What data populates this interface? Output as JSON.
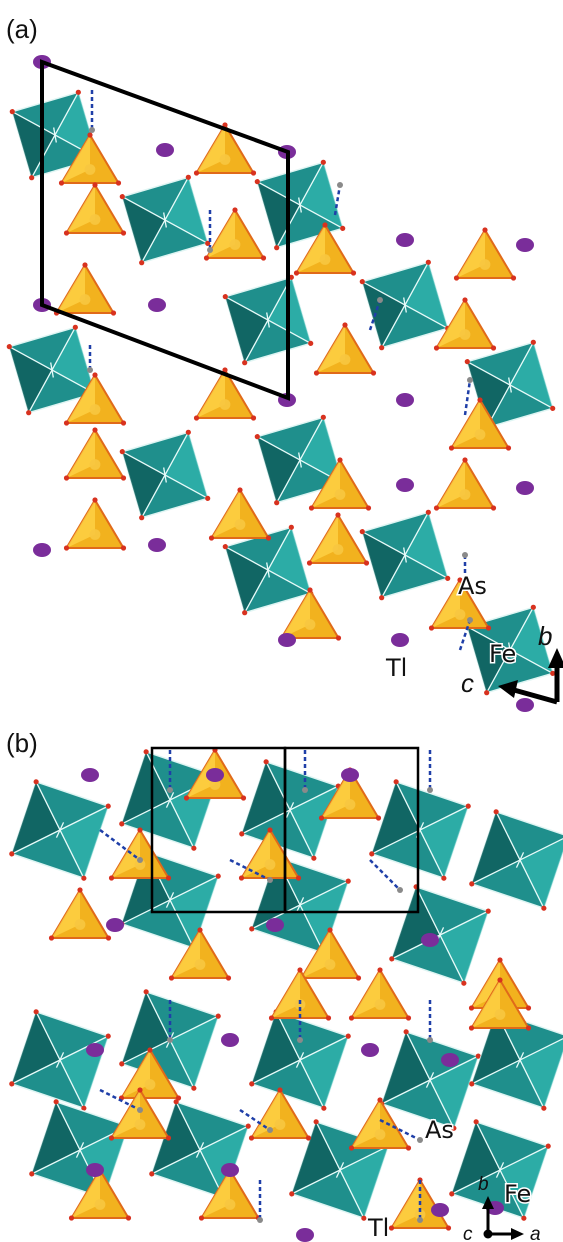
{
  "figure": {
    "panel_a": {
      "label": "(a)",
      "atom_labels": {
        "as": "As",
        "fe": "Fe",
        "tl": "Tl"
      },
      "axes": {
        "b": "b",
        "c": "c"
      }
    },
    "panel_b": {
      "label": "(b)",
      "atom_labels": {
        "as": "As",
        "fe": "Fe",
        "tl": "Tl"
      },
      "axes": {
        "b": "b",
        "c": "c",
        "a": "a"
      }
    }
  },
  "colors": {
    "fe_octahedron": "#1f8f8c",
    "fe_dark": "#0f5f5d",
    "fe_light": "#2fb3ad",
    "as_tetrahedron": "#f2b21e",
    "as_light": "#ffd44a",
    "as_edge": "#e06a1a",
    "oxygen": "#d8321f",
    "tl_atom": "#7a2d9a",
    "hydrogen": "#8a8a8a",
    "hbond": "#1f3fa8",
    "cell_outline": "#000000"
  },
  "icons": [
    "fe-octahedron-icon",
    "as-tetrahedron-icon",
    "tl-atom-icon",
    "axis-arrow-icon"
  ]
}
